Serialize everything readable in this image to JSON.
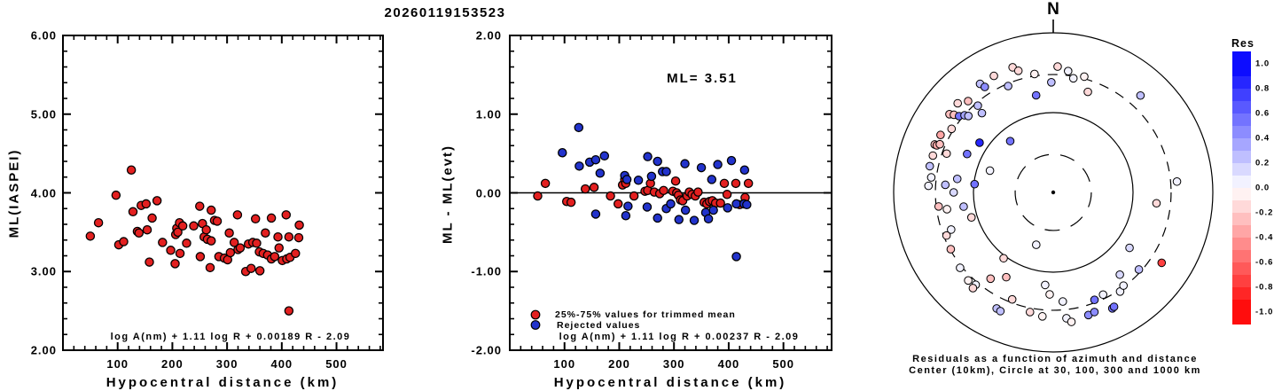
{
  "window": {
    "title": "20260119153523"
  },
  "colors": {
    "used_red": "#e32020",
    "rejected_blue": "#2233cc",
    "axis_black": "#000000",
    "colormap_positive": "#0000ff",
    "colormap_negative": "#ff0000",
    "background": "#ffffff"
  },
  "chart_data": [
    {
      "type": "scatter",
      "id": "ml-vs-distance",
      "xlabel": "Hypocentral distance (km)",
      "ylabel": "ML(IASPEI)",
      "xlim": [
        0,
        585
      ],
      "ylim": [
        2.0,
        6.0
      ],
      "x_tick_values": [
        100,
        200,
        300,
        400,
        500
      ],
      "x_tick_labels": [
        "100",
        "200",
        "300",
        "400",
        "500"
      ],
      "x_minor_step": 20,
      "y_tick_values": [
        6,
        5,
        4,
        3,
        2
      ],
      "y_tick_labels": [
        "6.00",
        "5.00",
        "4.00",
        "3.00",
        "2.00"
      ],
      "y_minor_step": 0.2,
      "grid": false,
      "formula_annotation": "log A(nm) + 1.11 log R + 0.00189 R - 2.09",
      "marker_color": "#e32020",
      "points_d_ml": [
        [
          50,
          3.45
        ],
        [
          65,
          3.62
        ],
        [
          97,
          3.97
        ],
        [
          102,
          3.34
        ],
        [
          111,
          3.38
        ],
        [
          125,
          4.29
        ],
        [
          128,
          3.76
        ],
        [
          136,
          3.51
        ],
        [
          139,
          3.49
        ],
        [
          143,
          3.84
        ],
        [
          152,
          3.86
        ],
        [
          154,
          3.53
        ],
        [
          158,
          3.12
        ],
        [
          163,
          3.68
        ],
        [
          172,
          3.9
        ],
        [
          182,
          3.37
        ],
        [
          197,
          3.27
        ],
        [
          205,
          3.1
        ],
        [
          206,
          3.47
        ],
        [
          208,
          3.55
        ],
        [
          210,
          3.5
        ],
        [
          213,
          3.62
        ],
        [
          214,
          3.23
        ],
        [
          219,
          3.58
        ],
        [
          226,
          3.36
        ],
        [
          239,
          3.58
        ],
        [
          250,
          3.83
        ],
        [
          251,
          3.19
        ],
        [
          255,
          3.61
        ],
        [
          258,
          3.44
        ],
        [
          262,
          3.53
        ],
        [
          264,
          3.41
        ],
        [
          269,
          3.05
        ],
        [
          271,
          3.39
        ],
        [
          271,
          3.78
        ],
        [
          277,
          3.65
        ],
        [
          282,
          3.64
        ],
        [
          285,
          3.19
        ],
        [
          295,
          3.17
        ],
        [
          301,
          3.15
        ],
        [
          304,
          3.49
        ],
        [
          306,
          3.24
        ],
        [
          313,
          3.37
        ],
        [
          319,
          3.72
        ],
        [
          320,
          3.28
        ],
        [
          324,
          3.3
        ],
        [
          334,
          3.0
        ],
        [
          339,
          3.35
        ],
        [
          344,
          3.04
        ],
        [
          347,
          3.37
        ],
        [
          352,
          3.67
        ],
        [
          354,
          3.36
        ],
        [
          359,
          3.25
        ],
        [
          360,
          3.01
        ],
        [
          366,
          3.23
        ],
        [
          370,
          3.49
        ],
        [
          374,
          3.21
        ],
        [
          381,
          3.68
        ],
        [
          381,
          3.16
        ],
        [
          387,
          3.19
        ],
        [
          393,
          3.44
        ],
        [
          395,
          3.3
        ],
        [
          401,
          3.14
        ],
        [
          408,
          3.72
        ],
        [
          409,
          3.16
        ],
        [
          413,
          3.44
        ],
        [
          413,
          2.5
        ],
        [
          415,
          3.18
        ],
        [
          425,
          3.23
        ],
        [
          431,
          3.43
        ],
        [
          432,
          3.59
        ]
      ]
    },
    {
      "type": "scatter",
      "id": "residual-vs-distance",
      "xlabel": "Hypocentral distance (km)",
      "ylabel": "ML - ML(evt)",
      "xlim": [
        0,
        588
      ],
      "ylim": [
        -2.0,
        2.0
      ],
      "x_tick_values": [
        100,
        200,
        300,
        400,
        500
      ],
      "x_tick_labels": [
        "100",
        "200",
        "300",
        "400",
        "500"
      ],
      "x_minor_step": 20,
      "y_tick_values": [
        2,
        1,
        0,
        -1,
        -2
      ],
      "y_tick_labels": [
        "2.00",
        "1.00",
        "0.00",
        "-1.00",
        "-2.00"
      ],
      "y_minor_step": 0.2,
      "grid": false,
      "zero_line": 0.0,
      "event_ml_annotation": "ML= 3.51",
      "formula_annotation": "log A(nm) + 1.11 log R + 0.00237 R - 2.09",
      "legend": [
        {
          "label": "25%-75% values for trimmed mean",
          "color": "#e32020"
        },
        {
          "label": "Rejected values",
          "color": "#2233cc"
        }
      ],
      "series": [
        {
          "name": "25%-75% values for trimmed mean",
          "color": "#e32020",
          "points_d_res": [
            [
              51,
              -0.04
            ],
            [
              65,
              0.12
            ],
            [
              104,
              -0.11
            ],
            [
              112,
              -0.12
            ],
            [
              138,
              0.05
            ],
            [
              154,
              0.07
            ],
            [
              184,
              -0.04
            ],
            [
              198,
              -0.14
            ],
            [
              206,
              0.1
            ],
            [
              210,
              0.17
            ],
            [
              212,
              0.12
            ],
            [
              227,
              -0.04
            ],
            [
              247,
              0.02
            ],
            [
              252,
              0.03
            ],
            [
              257,
              0.12
            ],
            [
              264,
              0.01
            ],
            [
              274,
              -0.01
            ],
            [
              281,
              0.03
            ],
            [
              298,
              0.02
            ],
            [
              303,
              0.15
            ],
            [
              305,
              0.0
            ],
            [
              308,
              -0.03
            ],
            [
              312,
              -0.09
            ],
            [
              316,
              -0.1
            ],
            [
              324,
              -0.04
            ],
            [
              328,
              0.01
            ],
            [
              333,
              -0.02
            ],
            [
              339,
              -0.04
            ],
            [
              344,
              0.01
            ],
            [
              355,
              -0.12
            ],
            [
              360,
              -0.14
            ],
            [
              365,
              -0.11
            ],
            [
              370,
              -0.1
            ],
            [
              376,
              -0.13
            ],
            [
              385,
              -0.13
            ],
            [
              392,
              0.12
            ],
            [
              397,
              -0.02
            ],
            [
              413,
              0.12
            ],
            [
              420,
              -0.15
            ],
            [
              430,
              -0.06
            ],
            [
              436,
              0.12
            ]
          ]
        },
        {
          "name": "Rejected values",
          "color": "#2233cc",
          "points_d_res": [
            [
              96,
              0.51
            ],
            [
              126,
              0.83
            ],
            [
              127,
              0.34
            ],
            [
              146,
              0.39
            ],
            [
              157,
              0.42
            ],
            [
              173,
              0.47
            ],
            [
              165,
              0.25
            ],
            [
              157,
              -0.27
            ],
            [
              210,
              0.22
            ],
            [
              214,
              0.17
            ],
            [
              212,
              -0.29
            ],
            [
              216,
              -0.17
            ],
            [
              235,
              0.16
            ],
            [
              252,
              0.46
            ],
            [
              259,
              0.21
            ],
            [
              251,
              -0.18
            ],
            [
              270,
              0.4
            ],
            [
              270,
              -0.32
            ],
            [
              279,
              0.27
            ],
            [
              286,
              0.27
            ],
            [
              286,
              -0.2
            ],
            [
              294,
              -0.14
            ],
            [
              309,
              -0.34
            ],
            [
              320,
              0.37
            ],
            [
              321,
              -0.22
            ],
            [
              337,
              -0.35
            ],
            [
              350,
              0.32
            ],
            [
              358,
              -0.25
            ],
            [
              363,
              -0.33
            ],
            [
              369,
              0.17
            ],
            [
              372,
              -0.22
            ],
            [
              380,
              0.36
            ],
            [
              398,
              -0.19
            ],
            [
              405,
              0.41
            ],
            [
              414,
              -0.14
            ],
            [
              414,
              -0.81
            ],
            [
              428,
              -0.14
            ],
            [
              429,
              0.29
            ],
            [
              433,
              -0.15
            ]
          ]
        }
      ]
    },
    {
      "type": "polar_scatter",
      "id": "azimuth-distance-residuals",
      "north_label": "N",
      "caption": [
        "Residuals as a function of azimuth and distance",
        "Center (10km), Circle at 30, 100, 300 and 1000 km"
      ],
      "center_distance_km": 10,
      "ring_distances_km": [
        30,
        100,
        300,
        1000
      ],
      "ring_dashed": [
        true,
        false,
        true,
        false
      ],
      "colorbar": {
        "title": "Res",
        "min": -1.0,
        "max": 1.0,
        "label_step": 0.2,
        "labels": [
          "1.0",
          "0.8",
          "0.6",
          "0.4",
          "0.2",
          "0.0",
          "-0.2",
          "-0.4",
          "-0.6",
          "-0.8",
          "-1.0"
        ]
      },
      "points_az_dist_res": [
        [
          342,
          445,
          -0.15
        ],
        [
          344,
          385,
          -0.15
        ],
        [
          351,
          318,
          -0.1
        ],
        [
          2,
          378,
          -0.15
        ],
        [
          7,
          340,
          0.0
        ],
        [
          10,
          283,
          0.0
        ],
        [
          15,
          318,
          -0.1
        ],
        [
          19,
          215,
          -0.15
        ],
        [
          359,
          240,
          0.2
        ],
        [
          350,
          172,
          0.5
        ],
        [
          337,
          280,
          0.2
        ],
        [
          333,
          435,
          -0.15
        ],
        [
          326,
          437,
          0.2
        ],
        [
          327,
          376,
          0.45
        ],
        [
          42,
          430,
          0.2
        ],
        [
          317,
          367,
          -0.25
        ],
        [
          313,
          434,
          -0.2
        ],
        [
          319,
          276,
          0.25
        ],
        [
          318,
          217,
          0.25
        ],
        [
          307,
          425,
          -0.3
        ],
        [
          308,
          380,
          -0.25
        ],
        [
          309,
          330,
          0.5
        ],
        [
          311,
          297,
          0.35
        ],
        [
          312,
          270,
          0.3
        ],
        [
          302,
          318,
          -0.2
        ],
        [
          297,
          385,
          -0.35
        ],
        [
          304,
          130,
          0.85
        ],
        [
          320,
          69,
          0.5
        ],
        [
          292,
          400,
          -0.3
        ],
        [
          292,
          375,
          -0.35
        ],
        [
          293,
          350,
          -0.3
        ],
        [
          290,
          264,
          -0.15
        ],
        [
          294,
          152,
          0.5
        ],
        [
          289,
          69,
          0.05
        ],
        [
          287,
          378,
          -0.2
        ],
        [
          282,
          382,
          0.2
        ],
        [
          277,
          347,
          0.0
        ],
        [
          273,
          368,
          0.0
        ],
        [
          278,
          164,
          0.25
        ],
        [
          274,
          227,
          0.3
        ],
        [
          276,
          98,
          0.5
        ],
        [
          270,
          177,
          0.15
        ],
        [
          263,
          280,
          -0.3
        ],
        [
          261,
          223,
          -0.1
        ],
        [
          261,
          137,
          0.3
        ],
        [
          253,
          118,
          -0.15
        ],
        [
          250,
          230,
          0.05
        ],
        [
          248,
          277,
          -0.15
        ],
        [
          241,
          294,
          -0.3
        ],
        [
          231,
          318,
          0.0
        ],
        [
          217,
          108,
          -0.15
        ],
        [
          224,
          342,
          -0.1
        ],
        [
          220,
          325,
          0.0
        ],
        [
          220,
          368,
          -0.2
        ],
        [
          216,
          217,
          -0.25
        ],
        [
          209,
          164,
          -0.25
        ],
        [
          201,
          273,
          -0.2
        ],
        [
          206,
          415,
          0.2
        ],
        [
          204,
          425,
          0.2
        ],
        [
          198,
          49,
          0.0
        ],
        [
          191,
          337,
          -0.15
        ],
        [
          185,
          363,
          -0.1
        ],
        [
          185,
          146,
          0.03
        ],
        [
          182,
          190,
          -0.1
        ],
        [
          175,
          236,
          0.0
        ],
        [
          174,
          385,
          0.0
        ],
        [
          172,
          435,
          -0.1
        ],
        [
          164,
          397,
          0.45
        ],
        [
          161,
          385,
          0.4
        ],
        [
          153,
          428,
          0.5
        ],
        [
          152,
          420,
          0.5
        ],
        [
          159,
          277,
          0.5
        ],
        [
          154,
          266,
          0.05
        ],
        [
          146,
          315,
          0.0
        ],
        [
          143,
          290,
          0.0
        ],
        [
          141,
          212,
          0.1
        ],
        [
          126,
          152,
          0.1
        ],
        [
          132,
          278,
          0.25
        ],
        [
          123,
          417,
          -0.8
        ],
        [
          96,
          200,
          -0.15
        ],
        [
          85,
          360,
          0.0
        ]
      ]
    }
  ]
}
